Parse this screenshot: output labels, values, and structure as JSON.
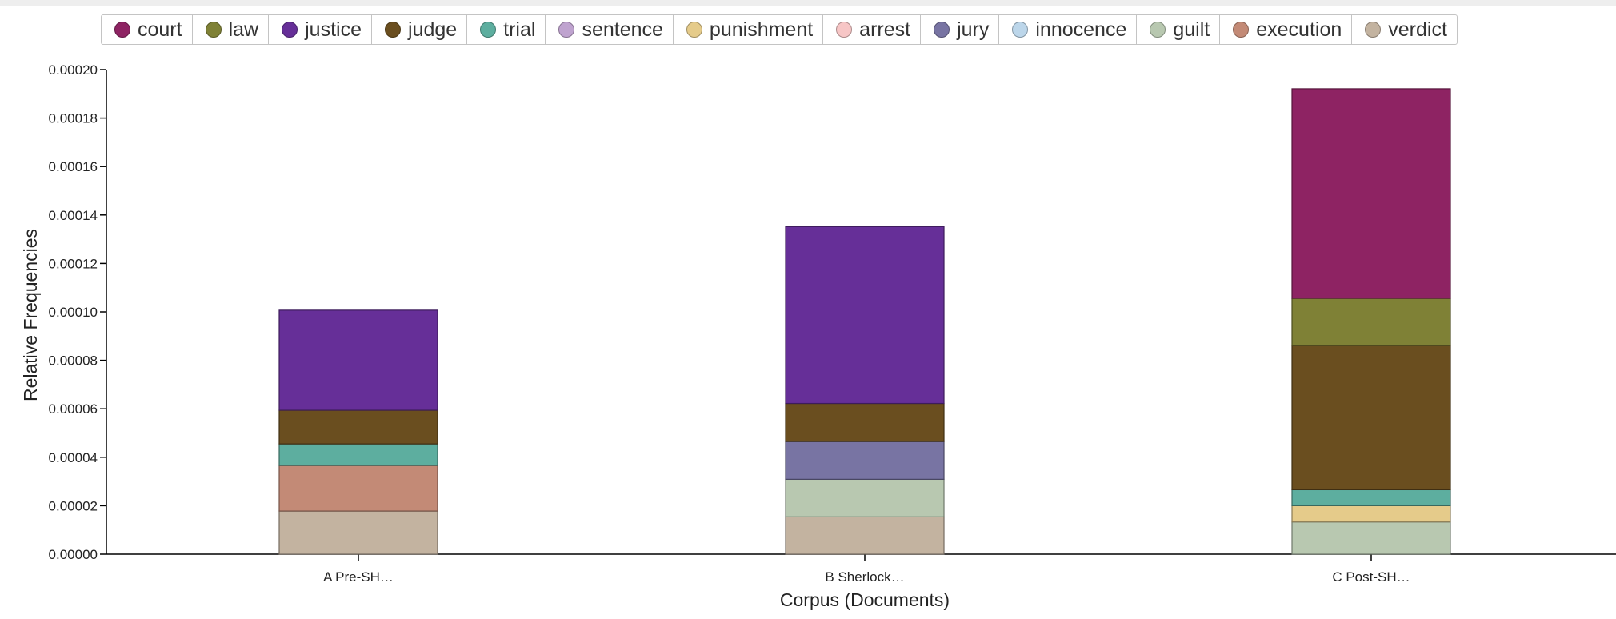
{
  "chart_data": {
    "type": "bar",
    "stacked": true,
    "xlabel": "Corpus (Documents)",
    "ylabel": "Relative Frequencies",
    "ylim": [
      0,
      0.0002
    ],
    "yticks": [
      "0.00000",
      "0.00002",
      "0.00004",
      "0.00006",
      "0.00008",
      "0.00010",
      "0.00012",
      "0.00014",
      "0.00016",
      "0.00018",
      "0.00020"
    ],
    "ytick_values": [
      0,
      2e-05,
      4e-05,
      6e-05,
      8e-05,
      0.0001,
      0.00012,
      0.00014,
      0.00016,
      0.00018,
      0.0002
    ],
    "categories": [
      "A Pre-SH…",
      "B Sherlock…",
      "C Post-SH…"
    ],
    "legend_position": "top",
    "series": [
      {
        "name": "court",
        "color": "#8e2363",
        "values": [
          0,
          0,
          8.65e-05
        ]
      },
      {
        "name": "law",
        "color": "#7f8136",
        "values": [
          0,
          0,
          1.95e-05
        ]
      },
      {
        "name": "justice",
        "color": "#662f98",
        "values": [
          4.13e-05,
          7.3e-05,
          0
        ]
      },
      {
        "name": "judge",
        "color": "#6a4e1f",
        "values": [
          1.39e-05,
          1.57e-05,
          5.95e-05
        ]
      },
      {
        "name": "trial",
        "color": "#5dae9f",
        "values": [
          8.9e-06,
          0,
          6.6e-06
        ]
      },
      {
        "name": "sentence",
        "color": "#bfa3cf",
        "values": [
          0,
          0,
          0
        ]
      },
      {
        "name": "punishment",
        "color": "#e5cb8a",
        "values": [
          0,
          0,
          6.7e-06
        ]
      },
      {
        "name": "arrest",
        "color": "#f7c6c6",
        "values": [
          0,
          0,
          0
        ]
      },
      {
        "name": "jury",
        "color": "#7874a3",
        "values": [
          0,
          1.56e-05,
          0
        ]
      },
      {
        "name": "innocence",
        "color": "#bcd6ea",
        "values": [
          0,
          0,
          0
        ]
      },
      {
        "name": "guilt",
        "color": "#b8c8b0",
        "values": [
          0,
          1.55e-05,
          1.33e-05
        ]
      },
      {
        "name": "execution",
        "color": "#c38a76",
        "values": [
          1.88e-05,
          0,
          0
        ]
      },
      {
        "name": "verdict",
        "color": "#c3b3a0",
        "values": [
          1.78e-05,
          1.54e-05,
          0
        ]
      }
    ]
  }
}
